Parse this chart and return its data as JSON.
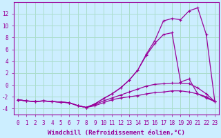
{
  "background_color": "#cceeff",
  "grid_color": "#aaddcc",
  "line_color": "#990099",
  "xlabel": "Windchill (Refroidissement éolien,°C)",
  "xlabel_fontsize": 6.5,
  "ylim": [
    -5,
    14
  ],
  "xlim": [
    -0.5,
    23.5
  ],
  "xtick_vals": [
    0,
    1,
    2,
    3,
    4,
    5,
    6,
    7,
    8,
    9,
    10,
    11,
    12,
    13,
    14,
    15,
    16,
    17,
    18,
    19,
    20,
    21,
    22,
    23
  ],
  "ytick_vals": [
    -4,
    -2,
    0,
    2,
    4,
    6,
    8,
    10,
    12
  ],
  "curve1_x": [
    0,
    1,
    2,
    3,
    4,
    5,
    6,
    7,
    8,
    9,
    10,
    11,
    12,
    13,
    14,
    15,
    16,
    17,
    18,
    19,
    20,
    21,
    22,
    23
  ],
  "curve1_y": [
    -2.5,
    -2.7,
    -2.8,
    -2.7,
    -2.8,
    -2.9,
    -3.0,
    -3.5,
    -3.8,
    -3.5,
    -3.0,
    -2.5,
    -2.2,
    -2.0,
    -1.8,
    -1.5,
    -1.3,
    -1.2,
    -1.0,
    -1.0,
    -1.2,
    -1.5,
    -2.0,
    -2.8
  ],
  "curve2_x": [
    0,
    1,
    2,
    3,
    4,
    5,
    6,
    7,
    8,
    9,
    10,
    11,
    12,
    13,
    14,
    15,
    16,
    17,
    18,
    19,
    20,
    21,
    22,
    23
  ],
  "curve2_y": [
    -2.5,
    -2.7,
    -2.8,
    -2.7,
    -2.8,
    -2.9,
    -3.0,
    -3.5,
    -3.8,
    -3.3,
    -2.7,
    -2.2,
    -1.7,
    -1.2,
    -0.7,
    -0.2,
    0.1,
    0.2,
    0.3,
    0.3,
    0.2,
    -0.5,
    -1.5,
    -2.8
  ],
  "curve3_x": [
    0,
    1,
    2,
    3,
    4,
    5,
    6,
    7,
    8,
    9,
    10,
    11,
    12,
    13,
    14,
    15,
    16,
    17,
    18,
    19,
    20,
    21,
    22,
    23
  ],
  "curve3_y": [
    -2.5,
    -2.7,
    -2.8,
    -2.7,
    -2.8,
    -2.9,
    -3.0,
    -3.5,
    -3.8,
    -3.2,
    -2.3,
    -1.5,
    -0.5,
    0.8,
    2.5,
    5.0,
    7.0,
    8.5,
    8.8,
    0.5,
    1.0,
    -1.5,
    -2.2,
    -2.8
  ],
  "curve4_x": [
    0,
    1,
    2,
    3,
    4,
    5,
    6,
    7,
    8,
    9,
    10,
    11,
    12,
    13,
    14,
    15,
    16,
    17,
    18,
    19,
    20,
    21,
    22,
    23
  ],
  "curve4_y": [
    -2.5,
    -2.7,
    -2.8,
    -2.7,
    -2.8,
    -2.9,
    -3.0,
    -3.5,
    -3.8,
    -3.2,
    -2.3,
    -1.5,
    -0.5,
    0.8,
    2.5,
    5.2,
    7.5,
    10.8,
    11.2,
    11.0,
    12.5,
    13.0,
    8.5,
    -2.8
  ],
  "marker": "+",
  "markersize": 3.5,
  "linewidth": 0.9,
  "tick_fontsize": 5.5,
  "dpi": 100
}
